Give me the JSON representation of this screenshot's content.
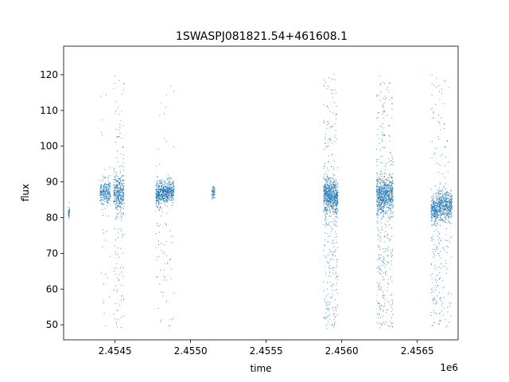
{
  "chart_data": {
    "type": "scatter",
    "title": "1SWASPJ081821.54+461608.1",
    "xlabel": "time",
    "ylabel": "flux",
    "x_offset_label": "1e6",
    "xlim": [
      2454160,
      2456770
    ],
    "ylim": [
      45.8,
      128.0
    ],
    "x_ticks": [
      2454500,
      2455000,
      2455500,
      2456000,
      2456500
    ],
    "x_tick_labels": [
      "2.4545",
      "2.4550",
      "2.4555",
      "2.4560",
      "2.4565"
    ],
    "y_ticks": [
      50,
      60,
      70,
      80,
      90,
      100,
      110,
      120
    ],
    "y_tick_labels": [
      "50",
      "60",
      "70",
      "80",
      "90",
      "100",
      "110",
      "120"
    ],
    "marker_color": "#1f77b4",
    "grid": false,
    "series": [
      {
        "segments": [
          {
            "x_start": 2454190,
            "x_end": 2454200,
            "y_center": 81.5,
            "y_spread": 1.5,
            "n": 40,
            "outliers": 0
          },
          {
            "x_start": 2454400,
            "x_end": 2454470,
            "y_center": 87.0,
            "y_spread": 3.0,
            "n": 260,
            "outliers": 25
          },
          {
            "x_start": 2454490,
            "x_end": 2454560,
            "y_center": 86.5,
            "y_spread": 4.5,
            "n": 360,
            "outliers": 110
          },
          {
            "x_start": 2454770,
            "x_end": 2454810,
            "y_center": 86.5,
            "y_spread": 3.0,
            "n": 220,
            "outliers": 35
          },
          {
            "x_start": 2454810,
            "x_end": 2454850,
            "y_center": 87.0,
            "y_spread": 2.5,
            "n": 220,
            "outliers": 30
          },
          {
            "x_start": 2454850,
            "x_end": 2454890,
            "y_center": 87.5,
            "y_spread": 2.5,
            "n": 200,
            "outliers": 20
          },
          {
            "x_start": 2455140,
            "x_end": 2455160,
            "y_center": 87.0,
            "y_spread": 1.5,
            "n": 60,
            "outliers": 0
          },
          {
            "x_start": 2455880,
            "x_end": 2455930,
            "y_center": 86.5,
            "y_spread": 4.0,
            "n": 360,
            "outliers": 160
          },
          {
            "x_start": 2455930,
            "x_end": 2455975,
            "y_center": 86.0,
            "y_spread": 4.0,
            "n": 320,
            "outliers": 140
          },
          {
            "x_start": 2456230,
            "x_end": 2456280,
            "y_center": 86.0,
            "y_spread": 4.0,
            "n": 360,
            "outliers": 190
          },
          {
            "x_start": 2456280,
            "x_end": 2456340,
            "y_center": 86.5,
            "y_spread": 4.0,
            "n": 360,
            "outliers": 170
          },
          {
            "x_start": 2456590,
            "x_end": 2456640,
            "y_center": 82.5,
            "y_spread": 3.0,
            "n": 260,
            "outliers": 110
          },
          {
            "x_start": 2456640,
            "x_end": 2456690,
            "y_center": 83.5,
            "y_spread": 3.5,
            "n": 260,
            "outliers": 100
          },
          {
            "x_start": 2456690,
            "x_end": 2456730,
            "y_center": 83.5,
            "y_spread": 3.0,
            "n": 200,
            "outliers": 40
          }
        ]
      }
    ]
  }
}
